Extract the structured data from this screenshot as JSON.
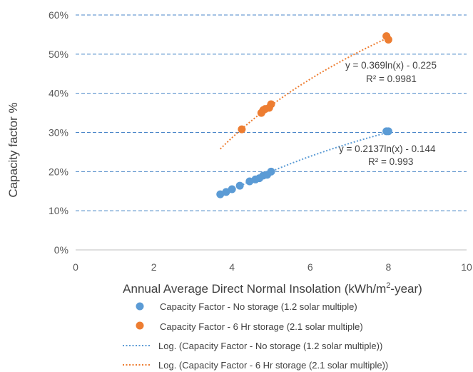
{
  "chart_data": {
    "type": "scatter",
    "xlabel_main": "Annual Average Direct Normal Insolation (kWh/m",
    "xlabel_sup": "2",
    "xlabel_tail": "-year)",
    "ylabel": "Capacity factor %",
    "xlim": [
      0,
      10
    ],
    "ylim": [
      0,
      0.6
    ],
    "x_ticks": [
      0,
      2,
      4,
      6,
      8,
      10
    ],
    "y_ticks": [
      0,
      0.1,
      0.2,
      0.3,
      0.4,
      0.5,
      0.6
    ],
    "x_tick_labels": [
      "0",
      "2",
      "4",
      "6",
      "8",
      "10"
    ],
    "y_tick_labels": [
      "0%",
      "10%",
      "20%",
      "30%",
      "40%",
      "50%",
      "60%"
    ],
    "grid": "horizontal dashed",
    "legend_position": "bottom",
    "series": [
      {
        "name": "Capacity Factor - No storage (1.2 solar multiple)",
        "color": "#5B9BD5",
        "x": [
          3.7,
          3.85,
          4.0,
          4.2,
          4.45,
          4.6,
          4.7,
          4.8,
          4.9,
          5.0,
          7.95,
          8.0
        ],
        "y": [
          0.142,
          0.148,
          0.155,
          0.164,
          0.175,
          0.18,
          0.183,
          0.19,
          0.192,
          0.2,
          0.303,
          0.303
        ]
      },
      {
        "name": "Capacity Factor - 6 Hr storage (2.1 solar multiple)",
        "color": "#ED7D31",
        "x": [
          4.25,
          4.75,
          4.8,
          4.85,
          4.95,
          5.0,
          7.95,
          8.0
        ],
        "y": [
          0.308,
          0.35,
          0.357,
          0.36,
          0.363,
          0.372,
          0.546,
          0.537
        ]
      }
    ],
    "trendlines": [
      {
        "name": "Log. (Capacity Factor - No storage (1.2 solar multiple))",
        "color": "#5B9BD5",
        "a": 0.2137,
        "b": -0.144,
        "x_range": [
          3.7,
          8.0
        ],
        "equation": "y = 0.2137ln(x) - 0.144",
        "r2": "R² = 0.993"
      },
      {
        "name": "Log. (Capacity Factor - 6 Hr storage (2.1 solar multiple))",
        "color": "#ED7D31",
        "a": 0.369,
        "b": -0.225,
        "x_range": [
          3.7,
          8.0
        ],
        "equation": "y = 0.369ln(x) - 0.225",
        "r2": "R² = 0.9981"
      }
    ]
  }
}
